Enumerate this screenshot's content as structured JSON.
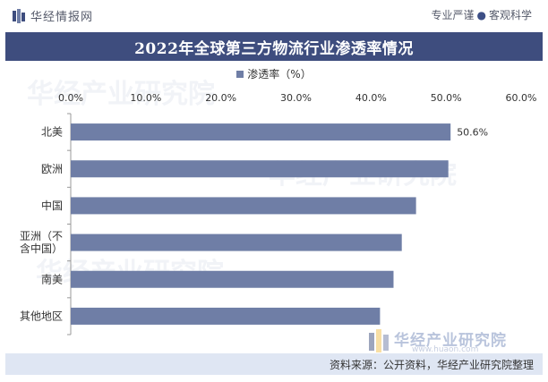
{
  "brand": {
    "logo_text": "华经情报网",
    "tagline_a": "专业严谨",
    "tagline_b": "客观科学"
  },
  "footer": {
    "source": "资料来源：公开资料，华经产业研究院整理"
  },
  "watermark": {
    "text": "华经产业研究院",
    "url": "www.huaon.com"
  },
  "colors": {
    "band": "#3e4d7e",
    "bar": "#6f7ea6",
    "footer": "#dfe6f3"
  },
  "chart_data": {
    "type": "bar",
    "orientation": "horizontal",
    "title": "2022年全球第三方物流行业渗透率情况",
    "legend": "渗透率（%）",
    "legend_position": "top",
    "categories": [
      "北美",
      "欧洲",
      "中国",
      "亚洲（不含中国）",
      "南美",
      "其他地区"
    ],
    "category_lines": [
      [
        "北美"
      ],
      [
        "欧洲"
      ],
      [
        "中国"
      ],
      [
        "亚洲（不",
        "含中国）"
      ],
      [
        "南美"
      ],
      [
        "其他地区"
      ]
    ],
    "values": [
      50.6,
      50.3,
      46.0,
      44.1,
      43.0,
      41.2
    ],
    "data_labels": [
      "50.6%",
      "",
      "",
      "",
      "",
      ""
    ],
    "xlim": [
      0,
      60
    ],
    "x_ticks": [
      "0.0%",
      "10.0%",
      "20.0%",
      "30.0%",
      "40.0%",
      "50.0%",
      "60.0%"
    ],
    "x_axis_position": "top",
    "grid": false
  }
}
